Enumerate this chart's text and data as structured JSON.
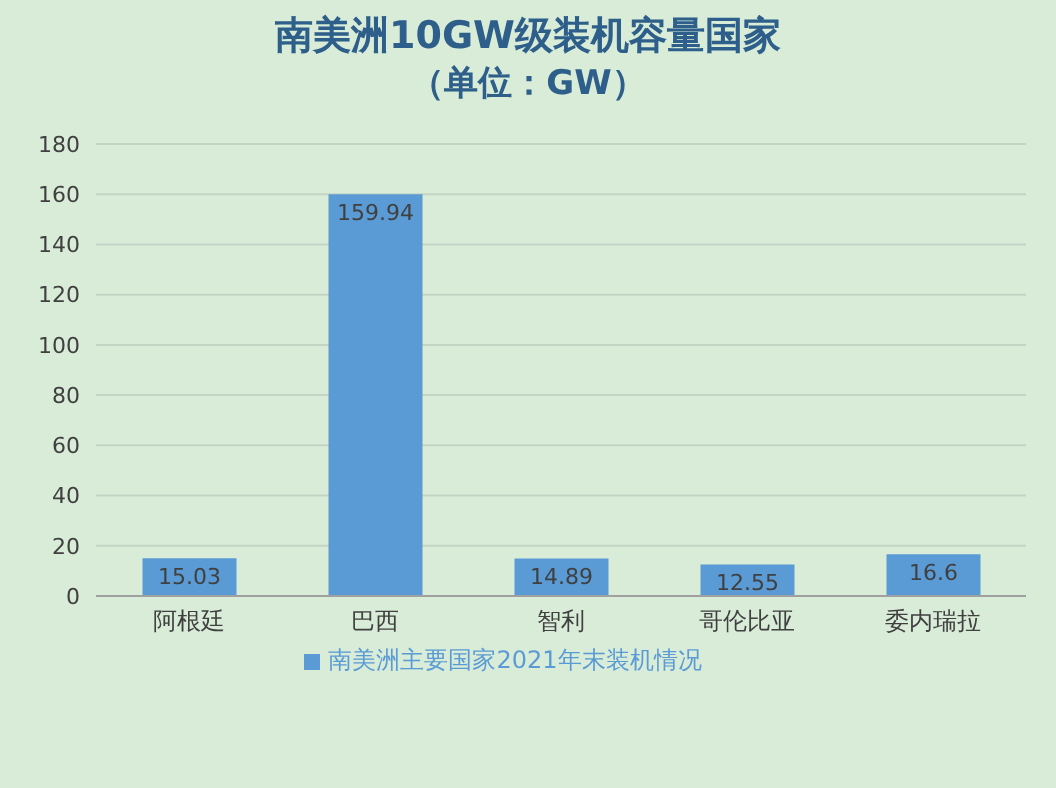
{
  "chart_data": {
    "type": "bar",
    "title": "南美洲10GW级装机容量国家",
    "subtitle": "（单位：GW）",
    "categories": [
      "阿根廷",
      "巴西",
      "智利",
      "哥伦比亚",
      "委内瑞拉"
    ],
    "series": [
      {
        "name": "南美洲主要国家2021年末装机情况",
        "color": "#5b9bd5",
        "values": [
          15.03,
          159.94,
          14.89,
          12.55,
          16.6
        ]
      }
    ],
    "ylim": [
      0,
      180
    ],
    "yticks": [
      0,
      20,
      40,
      60,
      80,
      100,
      120,
      140,
      160,
      180
    ],
    "grid": "y",
    "legend": "bottom",
    "data_labels": true
  }
}
